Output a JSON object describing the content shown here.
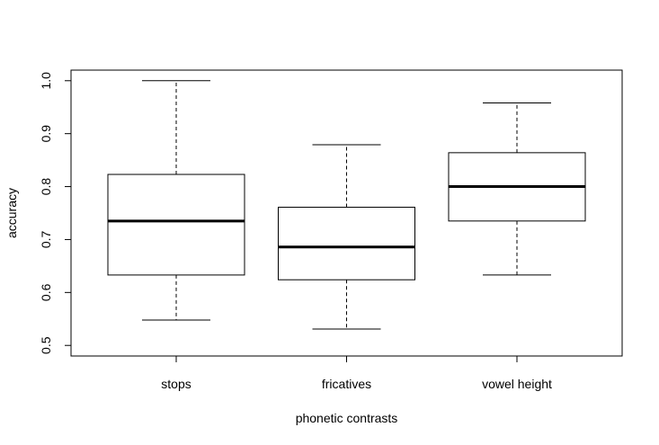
{
  "chart_data": {
    "type": "box",
    "title": "",
    "xlabel": "phonetic contrasts",
    "ylabel": "accuracy",
    "ylim": [
      0.48,
      1.02
    ],
    "yticks": [
      "0.5",
      "0.6",
      "0.7",
      "0.8",
      "0.9",
      "1.0"
    ],
    "grid": false,
    "categories": [
      "stops",
      "fricatives",
      "vowel height"
    ],
    "boxes": [
      {
        "min": 0.548,
        "q1": 0.633,
        "median": 0.735,
        "q3": 0.823,
        "max": 1.0
      },
      {
        "min": 0.531,
        "q1": 0.624,
        "median": 0.686,
        "q3": 0.761,
        "max": 0.879
      },
      {
        "min": 0.633,
        "q1": 0.735,
        "median": 0.8,
        "q3": 0.864,
        "max": 0.958
      }
    ]
  }
}
